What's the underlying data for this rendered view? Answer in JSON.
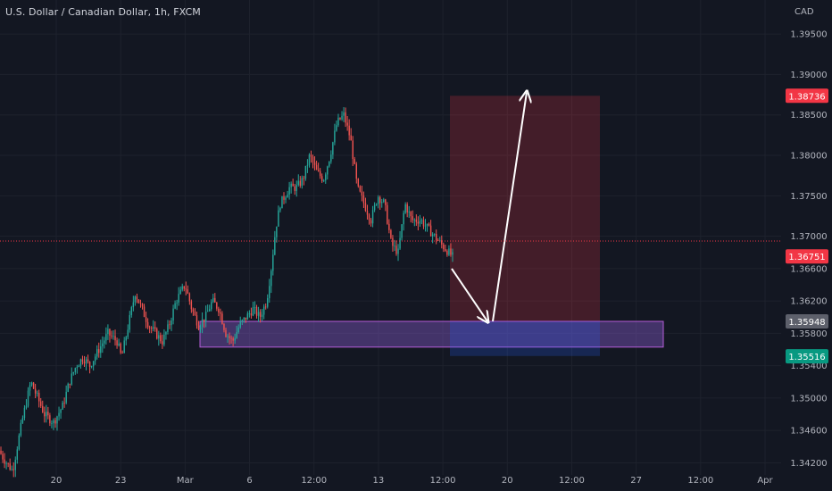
{
  "header": {
    "title": "U.S. Dollar / Canadian Dollar, 1h, FXCM",
    "currency": "CAD"
  },
  "colors": {
    "background": "#131722",
    "grid": "#1e222d",
    "text": "#b2b5be",
    "up": "#26a69a",
    "down": "#ef5350",
    "stop_zone": "rgba(242, 54, 69, 0.22)",
    "demand_zone": "rgba(126, 87, 194, 0.45)",
    "demand_border": "#b45cd8",
    "arrow": "#ffffff"
  },
  "price_labels": [
    {
      "value": "1.38736",
      "color": "#f23645"
    },
    {
      "value": "1.36751",
      "color": "#f23645"
    },
    {
      "value": "1.35948",
      "color": "#5d606b"
    },
    {
      "value": "1.35516",
      "color": "#089981"
    }
  ],
  "chart_data": {
    "type": "candlestick",
    "title": "U.S. Dollar / Canadian Dollar, 1h, FXCM",
    "currency": "CAD",
    "y_ticks": [
      "1.39500",
      "1.39000",
      "1.38500",
      "1.38000",
      "1.37500",
      "1.37000",
      "1.36600",
      "1.36200",
      "1.35800",
      "1.35400",
      "1.35000",
      "1.34600",
      "1.34200"
    ],
    "x_ticks": [
      "20",
      "23",
      "Mar",
      "6",
      "12:00",
      "13",
      "12:00",
      "20",
      "12:00",
      "27",
      "12:00",
      "Apr"
    ],
    "ylim": [
      1.3405,
      1.3992
    ],
    "grid": true,
    "last_price": 1.36751,
    "price_path": [
      [
        0,
        1.3435
      ],
      [
        0.01,
        1.3425
      ],
      [
        0.03,
        1.341
      ],
      [
        0.05,
        1.347
      ],
      [
        0.07,
        1.352
      ],
      [
        0.085,
        1.35
      ],
      [
        0.1,
        1.348
      ],
      [
        0.12,
        1.347
      ],
      [
        0.14,
        1.349
      ],
      [
        0.155,
        1.352
      ],
      [
        0.17,
        1.354
      ],
      [
        0.185,
        1.355
      ],
      [
        0.2,
        1.354
      ],
      [
        0.22,
        1.356
      ],
      [
        0.24,
        1.358
      ],
      [
        0.26,
        1.357
      ],
      [
        0.27,
        1.355
      ],
      [
        0.285,
        1.359
      ],
      [
        0.3,
        1.363
      ],
      [
        0.315,
        1.361
      ],
      [
        0.33,
        1.359
      ],
      [
        0.345,
        1.358
      ],
      [
        0.36,
        1.357
      ],
      [
        0.375,
        1.359
      ],
      [
        0.39,
        1.362
      ],
      [
        0.41,
        1.364
      ],
      [
        0.425,
        1.361
      ],
      [
        0.44,
        1.359
      ],
      [
        0.455,
        1.36
      ],
      [
        0.47,
        1.362
      ],
      [
        0.485,
        1.361
      ],
      [
        0.5,
        1.358
      ],
      [
        0.515,
        1.357
      ],
      [
        0.53,
        1.359
      ],
      [
        0.545,
        1.36
      ],
      [
        0.56,
        1.361
      ],
      [
        0.575,
        1.36
      ],
      [
        0.59,
        1.362
      ],
      [
        0.6,
        1.366
      ],
      [
        0.61,
        1.371
      ],
      [
        0.62,
        1.374
      ],
      [
        0.64,
        1.376
      ],
      [
        0.655,
        1.376
      ],
      [
        0.67,
        1.377
      ],
      [
        0.685,
        1.38
      ],
      [
        0.7,
        1.378
      ],
      [
        0.715,
        1.377
      ],
      [
        0.73,
        1.38
      ],
      [
        0.745,
        1.384
      ],
      [
        0.76,
        1.385
      ],
      [
        0.775,
        1.382
      ],
      [
        0.79,
        1.376
      ],
      [
        0.805,
        1.374
      ],
      [
        0.82,
        1.372
      ],
      [
        0.835,
        1.375
      ],
      [
        0.85,
        1.374
      ],
      [
        0.865,
        1.369
      ],
      [
        0.88,
        1.368
      ],
      [
        0.895,
        1.374
      ],
      [
        0.91,
        1.372
      ],
      [
        0.93,
        1.372
      ],
      [
        0.945,
        1.371
      ],
      [
        0.96,
        1.37
      ],
      [
        0.975,
        1.369
      ],
      [
        1.0,
        1.3675
      ]
    ],
    "series": [
      {
        "name": "USD/CAD",
        "values": "see price_path"
      }
    ],
    "drawings": {
      "stop_zone": {
        "top": 1.38736,
        "bottom": 1.35948
      },
      "demand_zone": {
        "top": 1.35948,
        "bottom": 1.3563
      },
      "projection_arrows": [
        {
          "from": 1.366,
          "to": 1.35948
        },
        {
          "from": 1.35948,
          "to": 1.38736
        }
      ]
    }
  }
}
